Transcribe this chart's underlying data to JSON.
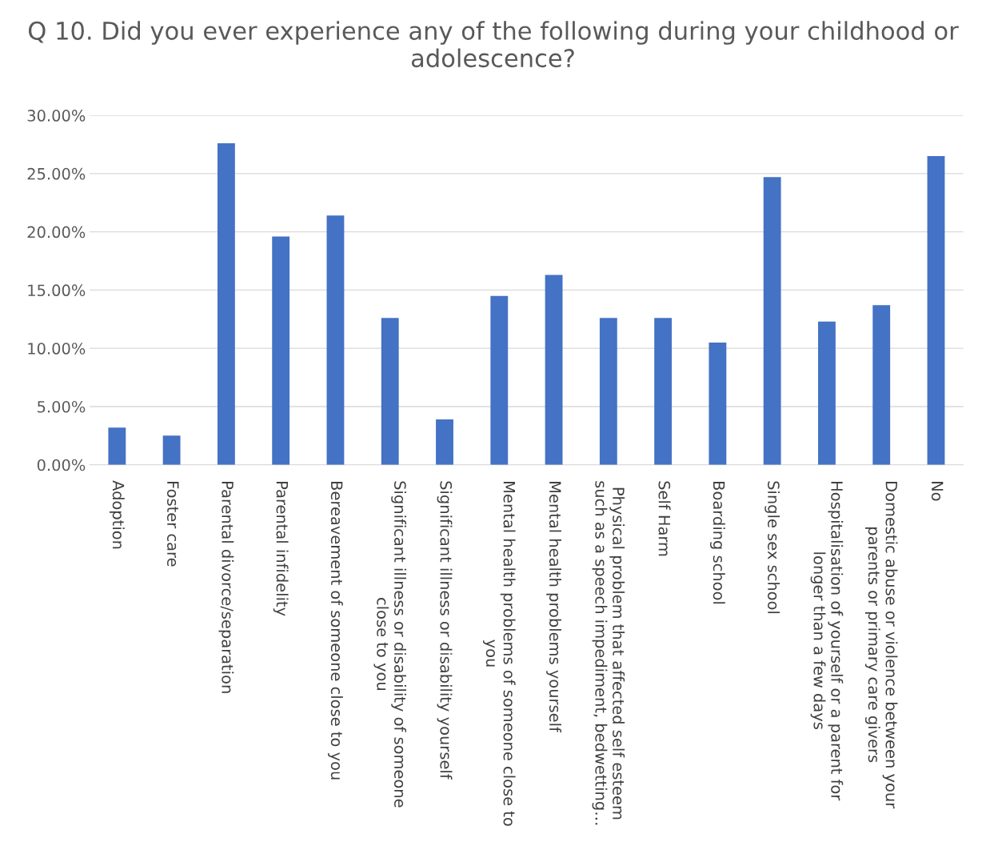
{
  "chart_data": {
    "type": "bar",
    "title": "Q 10. Did you ever experience any of the following during your childhood or adolescence?",
    "categories": [
      "Adoption",
      "Foster care",
      "Parental divorce/separation",
      "Parental infidelity",
      "Bereavement of someone close to you",
      "Significant illness or disability of someone close to you",
      "Significant illness or disability yourself",
      "Mental health problems of someone close to you",
      "Mental health problems yourself",
      "Physical problem that affected self esteem such as a speech impediment, bedwetting…",
      "Self Harm",
      "Boarding school",
      "Single sex school",
      "Hospitalisation of yourself or a parent for longer than a few days",
      "Domestic abuse or violence between your parents or primary care givers",
      "No"
    ],
    "values": [
      3.2,
      2.5,
      27.6,
      19.6,
      21.4,
      12.6,
      3.9,
      14.5,
      16.3,
      12.6,
      12.6,
      10.5,
      24.7,
      12.3,
      13.7,
      26.5
    ],
    "color": "#4472c4",
    "ylim": [
      0,
      30
    ],
    "yticks": [
      {
        "value": 0,
        "label": "0.00%"
      },
      {
        "value": 5,
        "label": "5.00%"
      },
      {
        "value": 10,
        "label": "10.00%"
      },
      {
        "value": 15,
        "label": "15.00%"
      },
      {
        "value": 20,
        "label": "20.00%"
      },
      {
        "value": 25,
        "label": "25.00%"
      },
      {
        "value": 30,
        "label": "30.00%"
      }
    ],
    "grid": "y"
  }
}
